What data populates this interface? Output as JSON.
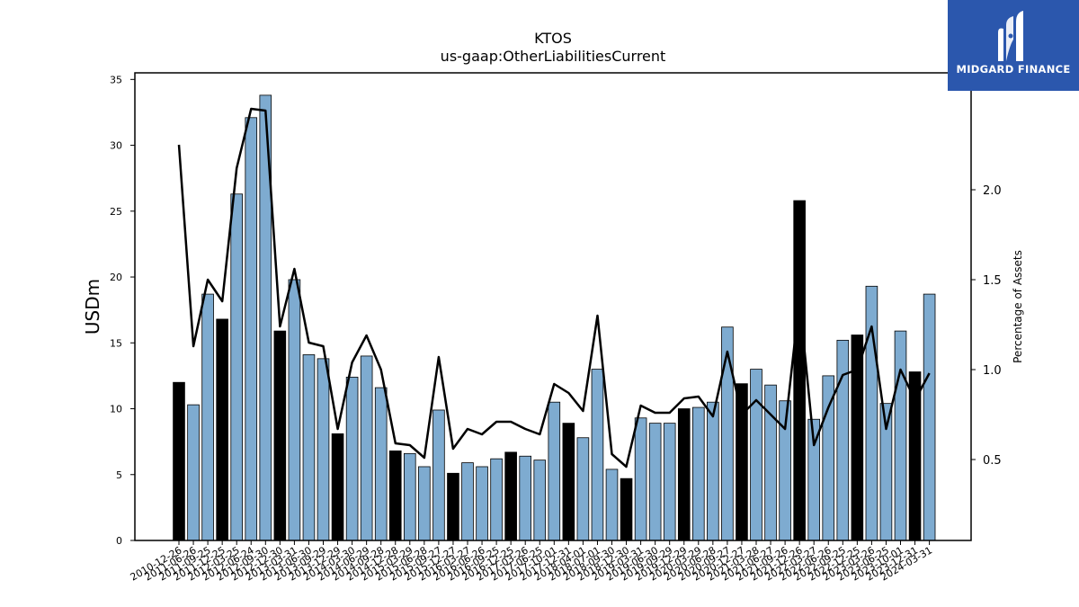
{
  "brand": {
    "name": "MIDGARD FINANCE",
    "color": "#2b57ad"
  },
  "chart_data": {
    "type": "bar",
    "title": "KTOS",
    "subtitle": "us-gaap:OtherLiabilitiesCurrent",
    "ylabel": "USDm",
    "y2label": "Percentage of Assets",
    "ylim": [
      0,
      35.5
    ],
    "y2lim": [
      0.05,
      2.65
    ],
    "yticks": [
      0,
      5,
      10,
      15,
      20,
      25,
      30,
      35
    ],
    "y2ticks": [
      0.5,
      1.0,
      1.5,
      2.0
    ],
    "tick_labels": [
      "2010-12-26",
      "2011-06-26",
      "2011-09-25",
      "2011-12-25",
      "2012-03-25",
      "2012-06-24",
      "2012-09-30",
      "2012-12-30",
      "2013-03-31",
      "2013-06-30",
      "2013-09-29",
      "2013-12-29",
      "2014-03-30",
      "2014-06-29",
      "2014-09-28",
      "2014-12-28",
      "2015-03-29",
      "2015-06-28",
      "2015-09-27",
      "2015-12-27",
      "2016-03-27",
      "2016-06-26",
      "2016-09-25",
      "2016-12-25",
      "2017-03-26",
      "2017-06-25",
      "2017-10-01",
      "2017-12-31",
      "2018-04-01",
      "2018-07-01",
      "2018-09-30",
      "2018-12-30",
      "2019-03-31",
      "2019-06-30",
      "2019-09-29",
      "2019-12-29",
      "2020-03-29",
      "2020-06-28",
      "2020-09-27",
      "2020-12-27",
      "2021-03-28",
      "2021-06-27",
      "2021-09-26",
      "2021-12-26",
      "2022-03-27",
      "2022-06-26",
      "2022-09-25",
      "2022-12-25",
      "2023-03-26",
      "2023-06-25",
      "2023-10-01",
      "2023-12-31",
      "2024-03-31"
    ],
    "bar_values": [
      12.0,
      10.3,
      18.7,
      16.8,
      26.3,
      32.1,
      33.8,
      15.9,
      19.8,
      14.1,
      13.8,
      8.1,
      12.4,
      14.0,
      11.6,
      6.8,
      6.6,
      5.6,
      9.9,
      5.1,
      5.9,
      5.6,
      6.2,
      6.7,
      6.4,
      6.1,
      10.5,
      8.9,
      7.8,
      13.0,
      5.4,
      4.7,
      9.3,
      8.9,
      8.9,
      10.0,
      10.1,
      10.5,
      16.2,
      11.9,
      13.0,
      11.8,
      10.6,
      25.8,
      9.2,
      12.5,
      15.2,
      15.6,
      19.3,
      10.4,
      15.9,
      12.8,
      18.7
    ],
    "quarter_end_flags": [
      1,
      0,
      0,
      1,
      0,
      0,
      0,
      1,
      0,
      0,
      0,
      1,
      0,
      0,
      0,
      1,
      0,
      0,
      0,
      1,
      0,
      0,
      0,
      1,
      0,
      0,
      0,
      1,
      0,
      0,
      0,
      1,
      0,
      0,
      0,
      1,
      0,
      0,
      0,
      1,
      0,
      0,
      0,
      1,
      0,
      0,
      0,
      1,
      0,
      0,
      0,
      1,
      0
    ],
    "line_values": [
      2.25,
      1.13,
      1.5,
      1.38,
      2.12,
      2.45,
      2.44,
      1.24,
      1.56,
      1.15,
      1.13,
      0.67,
      1.04,
      1.19,
      1.0,
      0.59,
      0.58,
      0.51,
      1.07,
      0.56,
      0.67,
      0.64,
      0.71,
      0.71,
      0.67,
      0.64,
      0.92,
      0.87,
      0.77,
      1.3,
      0.53,
      0.46,
      0.8,
      0.76,
      0.76,
      0.84,
      0.85,
      0.74,
      1.1,
      0.75,
      0.83,
      0.75,
      0.67,
      1.39,
      0.58,
      0.79,
      0.97,
      1.0,
      1.24,
      0.67,
      1.0,
      0.83,
      0.98
    ],
    "colors": {
      "bar": "#7eabd0",
      "bar_highlight": "#000000",
      "line": "#000000"
    },
    "grid": false
  }
}
